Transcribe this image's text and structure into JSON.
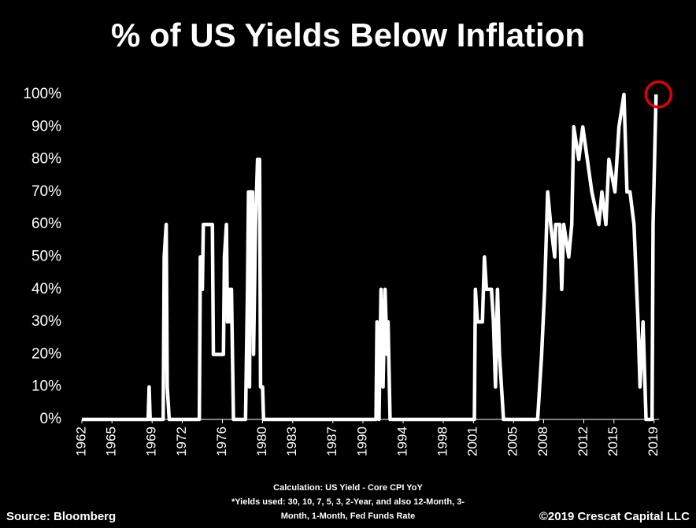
{
  "chart_data": {
    "type": "line",
    "title": "% of US Yields Below Inflation",
    "note_lines": [
      "Calculation: US Yield - Core CPI YoY",
      "*Yields used: 30, 10, 7, 5, 3, 2-Year, and also 12-Month, 3-",
      "Month, 1-Month, Fed Funds Rate"
    ],
    "source": "Source: Bloomberg",
    "copyright": "©2019 Crescat Capital LLC",
    "xlim": [
      1962,
      2019.5
    ],
    "xticks": [
      1962,
      1965,
      1969,
      1972,
      1976,
      1980,
      1983,
      1987,
      1990,
      1994,
      1998,
      2001,
      2005,
      2008,
      2012,
      2015,
      2019
    ],
    "ylim": [
      0,
      100
    ],
    "yticks": [
      {
        "value": 0,
        "label": "0%"
      },
      {
        "value": 10,
        "label": "10%"
      },
      {
        "value": 20,
        "label": "20%"
      },
      {
        "value": 30,
        "label": "30%"
      },
      {
        "value": 40,
        "label": "40%"
      },
      {
        "value": 50,
        "label": "50%"
      },
      {
        "value": 60,
        "label": "60%"
      },
      {
        "value": 70,
        "label": "70%"
      },
      {
        "value": 80,
        "label": "80%"
      },
      {
        "value": 90,
        "label": "90%"
      },
      {
        "value": 100,
        "label": "100%"
      }
    ],
    "x": [
      1962,
      1968.6,
      1968.7,
      1968.8,
      1970.1,
      1970.2,
      1970.4,
      1970.5,
      1970.7,
      1973.7,
      1973.8,
      1974.0,
      1974.1,
      1975.0,
      1975.1,
      1976.1,
      1976.2,
      1976.4,
      1976.5,
      1976.7,
      1976.8,
      1976.9,
      1977.1,
      1978.3,
      1978.5,
      1978.6,
      1978.7,
      1978.8,
      1979.0,
      1979.1,
      1979.3,
      1979.5,
      1979.7,
      1979.8,
      1980.0,
      1980.1,
      1991.3,
      1991.4,
      1991.6,
      1991.8,
      1992.0,
      1992.2,
      1992.4,
      1992.5,
      1992.7,
      1993.3,
      2001.1,
      2001.2,
      2001.4,
      2001.9,
      2002.1,
      2002.3,
      2002.8,
      2003.0,
      2003.2,
      2003.4,
      2003.6,
      2003.8,
      2004.0,
      2007.4,
      2007.6,
      2007.8,
      2008.1,
      2008.4,
      2008.7,
      2009.1,
      2009.2,
      2009.6,
      2009.8,
      2010.0,
      2010.5,
      2010.8,
      2011.0,
      2011.5,
      2011.9,
      2012.8,
      2013.5,
      2013.8,
      2014.2,
      2014.5,
      2015.1,
      2015.5,
      2016.0,
      2016.3,
      2016.6,
      2017.0,
      2017.4,
      2017.6,
      2017.9,
      2018.2,
      2018.8,
      2018.9,
      2019.2
    ],
    "series": [
      {
        "color": "#ffffff",
        "values": [
          0,
          0,
          10,
          0,
          0,
          50,
          60,
          10,
          0,
          0,
          50,
          40,
          60,
          60,
          20,
          20,
          50,
          60,
          30,
          40,
          30,
          40,
          0,
          0,
          40,
          70,
          10,
          70,
          70,
          20,
          60,
          80,
          80,
          10,
          10,
          0,
          0,
          30,
          0,
          40,
          10,
          40,
          20,
          30,
          0,
          0,
          0,
          40,
          30,
          30,
          50,
          40,
          40,
          30,
          10,
          40,
          20,
          10,
          0,
          0,
          10,
          20,
          40,
          70,
          60,
          50,
          60,
          60,
          40,
          60,
          50,
          60,
          90,
          80,
          90,
          70,
          60,
          70,
          60,
          80,
          70,
          90,
          100,
          70,
          70,
          60,
          30,
          10,
          30,
          0,
          0,
          60,
          100
        ]
      }
    ],
    "highlight_color": "#e00000"
  }
}
